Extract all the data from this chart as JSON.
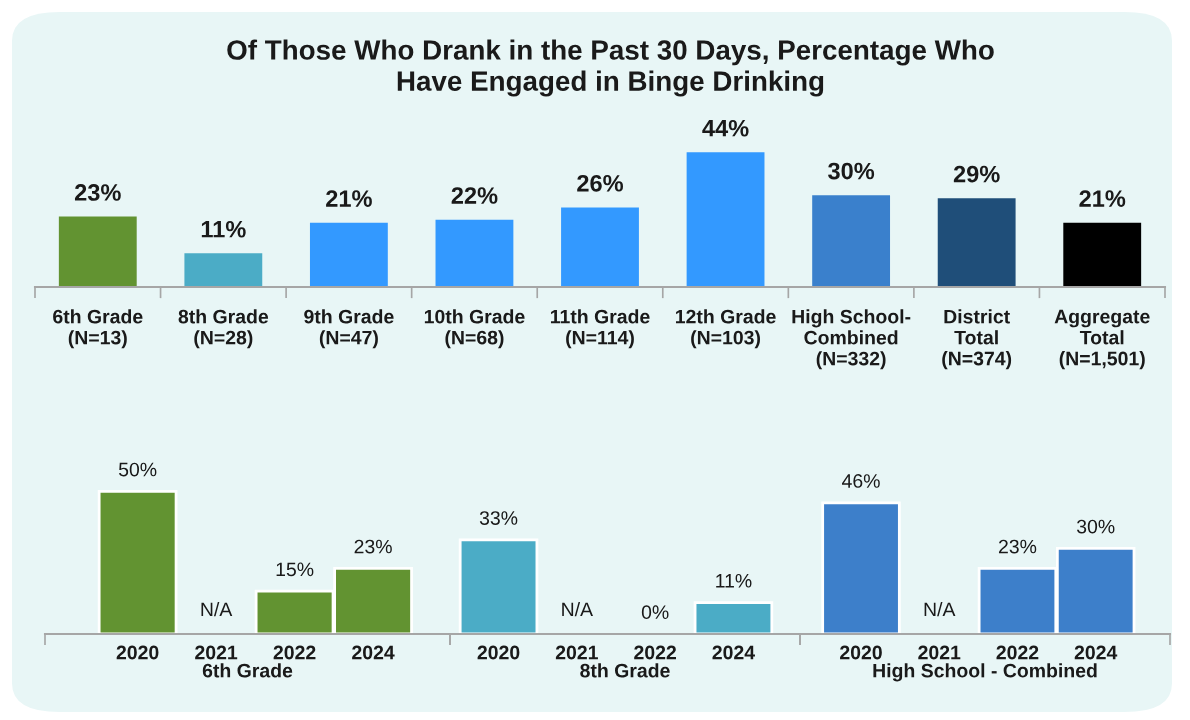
{
  "chart_data": [
    {
      "type": "bar",
      "title": "Of Those Who Drank in the Past 30 Days, Percentage Who\nHave Engaged in Binge Drinking",
      "categories": [
        "6th Grade\n(N=13)",
        "8th Grade\n(N=28)",
        "9th Grade\n(N=47)",
        "10th Grade\n(N=68)",
        "11th Grade\n(N=114)",
        "12th Grade\n(N=103)",
        "High School-\nCombined\n(N=332)",
        "District\nTotal\n(N=374)",
        "Aggregate\nTotal\n(N=1,501)"
      ],
      "values": [
        23,
        11,
        21,
        22,
        26,
        44,
        30,
        29,
        21
      ],
      "value_labels": [
        "23%",
        "11%",
        "21%",
        "22%",
        "26%",
        "44%",
        "30%",
        "29%",
        "21%"
      ],
      "colors": [
        "#629331",
        "#4bacc6",
        "#3399ff",
        "#3399ff",
        "#3399ff",
        "#3399ff",
        "#3a80cc",
        "#1f4e79",
        "#000000"
      ]
    },
    {
      "type": "bar",
      "xlabel": "6th Grade",
      "categories": [
        "2020",
        "2021",
        "2022",
        "2024"
      ],
      "values": [
        50,
        null,
        15,
        23
      ],
      "value_labels": [
        "50%",
        "N/A",
        "15%",
        "23%"
      ],
      "colors": [
        "#629331",
        "#629331",
        "#629331",
        "#629331"
      ]
    },
    {
      "type": "bar",
      "xlabel": "8th Grade",
      "categories": [
        "2020",
        "2021",
        "2022",
        "2024"
      ],
      "values": [
        33,
        null,
        0,
        11
      ],
      "value_labels": [
        "33%",
        "N/A",
        "0%",
        "11%"
      ],
      "colors": [
        "#4bacc6",
        "#4bacc6",
        "#4bacc6",
        "#4bacc6"
      ]
    },
    {
      "type": "bar",
      "xlabel": "High School - Combined",
      "categories": [
        "2020",
        "2021",
        "2022",
        "2024"
      ],
      "values": [
        46,
        null,
        23,
        30
      ],
      "value_labels": [
        "46%",
        "N/A",
        "23%",
        "30%"
      ],
      "colors": [
        "#3d7fca",
        "#3d7fca",
        "#3d7fca",
        "#3d7fca"
      ]
    }
  ]
}
